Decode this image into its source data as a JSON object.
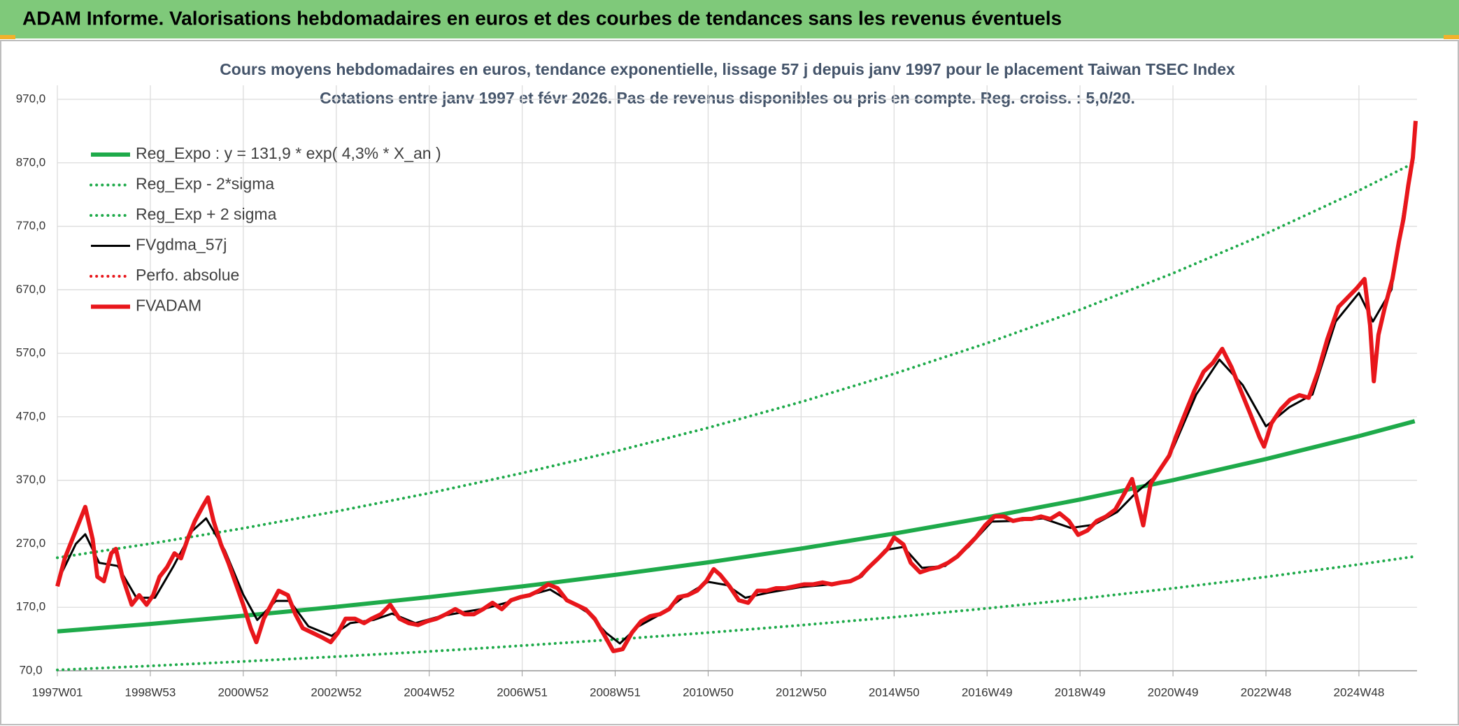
{
  "chart_data": {
    "type": "line",
    "title": "ADAM Informe. Valorisations hebdomadaires en euros et des courbes de tendances sans les revenus éventuels",
    "subtitle": "Cours moyens hebdomadaires en euros, tendance exponentielle, lissage 57 j depuis janv 1997 pour le placement Taiwan TSEC Index",
    "subtitle2": "Cotations entre janv 1997 et févr 2026. Pas de revenus disponibles ou pris en compte. Reg. croiss. : 5,0/20.",
    "xlim": [
      1997,
      2026.25
    ],
    "ylim": [
      70,
      970
    ],
    "grid": true,
    "legend": "upper-left",
    "xticks": [
      {
        "value": 1997,
        "label": "1997W01"
      },
      {
        "value": 1999,
        "label": "1998W53"
      },
      {
        "value": 2001,
        "label": "2000W52"
      },
      {
        "value": 2003,
        "label": "2002W52"
      },
      {
        "value": 2005,
        "label": "2004W52"
      },
      {
        "value": 2007,
        "label": "2006W51"
      },
      {
        "value": 2009,
        "label": "2008W51"
      },
      {
        "value": 2011,
        "label": "2010W50"
      },
      {
        "value": 2013,
        "label": "2012W50"
      },
      {
        "value": 2015,
        "label": "2014W50"
      },
      {
        "value": 2017,
        "label": "2016W49"
      },
      {
        "value": 2019,
        "label": "2018W49"
      },
      {
        "value": 2021,
        "label": "2020W49"
      },
      {
        "value": 2023,
        "label": "2022W48"
      },
      {
        "value": 2025,
        "label": "2024W48"
      }
    ],
    "yticks": [
      {
        "value": 70,
        "label": "70,0"
      },
      {
        "value": 170,
        "label": "170,0"
      },
      {
        "value": 270,
        "label": "270,0"
      },
      {
        "value": 370,
        "label": "370,0"
      },
      {
        "value": 470,
        "label": "470,0"
      },
      {
        "value": 570,
        "label": "570,0"
      },
      {
        "value": 670,
        "label": "670,0"
      },
      {
        "value": 770,
        "label": "770,0"
      },
      {
        "value": 870,
        "label": "870,0"
      },
      {
        "value": 970,
        "label": "970,0"
      }
    ],
    "series": [
      {
        "name": "Reg_Expo : y = 131,9 * exp( 4,3% *  X_an )",
        "color": "#1eaa4a",
        "style": "thick",
        "x": [
          1997,
          1999,
          2001,
          2003,
          2005,
          2007,
          2009,
          2011,
          2013,
          2015,
          2017,
          2019,
          2021,
          2023,
          2025,
          2026.2
        ],
        "values": [
          131.9,
          143.7,
          156.6,
          170.7,
          186.0,
          202.8,
          221.0,
          240.8,
          262.4,
          286.0,
          311.7,
          339.7,
          370.2,
          403.4,
          439.6,
          463.0
        ]
      },
      {
        "name": "Reg_Exp - 2*sigma",
        "color": "#1eaa4a",
        "style": "dotted",
        "x": [
          1997,
          1999,
          2001,
          2003,
          2005,
          2007,
          2009,
          2011,
          2013,
          2015,
          2017,
          2019,
          2021,
          2023,
          2025,
          2026.2
        ],
        "values": [
          71.2,
          77.6,
          84.6,
          92.2,
          100.4,
          109.5,
          119.3,
          130.0,
          141.7,
          154.4,
          168.3,
          183.4,
          199.9,
          217.8,
          237.4,
          250.0
        ]
      },
      {
        "name": "Reg_Exp + 2 sigma",
        "color": "#1eaa4a",
        "style": "dotted",
        "x": [
          1997,
          1999,
          2001,
          2003,
          2005,
          2007,
          2009,
          2011,
          2013,
          2015,
          2017,
          2019,
          2021,
          2023,
          2025,
          2026.2
        ],
        "values": [
          248.0,
          270.2,
          294.4,
          320.9,
          349.7,
          381.3,
          415.5,
          452.7,
          493.3,
          537.7,
          586.0,
          638.6,
          696.0,
          758.4,
          826.4,
          870.4
        ]
      },
      {
        "name": "FVgdma_57j",
        "color": "#000000",
        "style": "solid",
        "x": [
          1997,
          1997.4,
          1997.6,
          1997.9,
          1998.3,
          1998.7,
          1999.1,
          1999.5,
          1999.9,
          2000.2,
          2000.6,
          2001,
          2001.3,
          2001.7,
          2002,
          2002.4,
          2002.9,
          2003.3,
          2003.8,
          2004.2,
          2004.7,
          2005.2,
          2005.7,
          2006.2,
          2006.7,
          2007.2,
          2007.6,
          2008,
          2008.4,
          2008.8,
          2009.1,
          2009.5,
          2010,
          2010.5,
          2011,
          2011.4,
          2011.8,
          2012.3,
          2013,
          2013.8,
          2014.3,
          2014.8,
          2015.2,
          2015.6,
          2016.1,
          2016.6,
          2017.1,
          2017.6,
          2018.2,
          2018.8,
          2019.3,
          2019.8,
          2020.2,
          2020.6,
          2021,
          2021.5,
          2022,
          2022.5,
          2023,
          2023.5,
          2024,
          2024.5,
          2025,
          2025.3,
          2025.7,
          2026.1
        ],
        "values": [
          210,
          270,
          285,
          240,
          235,
          185,
          185,
          235,
          290,
          310,
          260,
          190,
          150,
          180,
          180,
          140,
          125,
          145,
          150,
          160,
          145,
          155,
          162,
          168,
          178,
          190,
          198,
          180,
          162,
          130,
          113,
          140,
          160,
          188,
          210,
          205,
          185,
          193,
          202,
          207,
          218,
          260,
          265,
          232,
          235,
          265,
          305,
          306,
          310,
          295,
          300,
          320,
          350,
          375,
          420,
          505,
          560,
          520,
          455,
          485,
          505,
          620,
          665,
          620,
          670,
          860
        ]
      },
      {
        "name": "Perfo. absolue",
        "color": "#e8161b",
        "style": "dotted",
        "x": [],
        "values": []
      },
      {
        "name": "FVADAM",
        "color": "#e8161b",
        "style": "thick",
        "x": [
          1997.0,
          1997.16,
          1997.36,
          1997.6,
          1997.76,
          1997.86,
          1998.0,
          1998.16,
          1998.26,
          1998.4,
          1998.6,
          1998.76,
          1998.92,
          1999.06,
          1999.2,
          1999.36,
          1999.52,
          1999.66,
          1999.8,
          1999.96,
          2000.12,
          2000.24,
          2000.36,
          2000.52,
          2000.68,
          2000.86,
          2001.0,
          2001.16,
          2001.28,
          2001.44,
          2001.6,
          2001.76,
          2001.96,
          2002.12,
          2002.28,
          2002.48,
          2002.68,
          2002.88,
          2003.04,
          2003.2,
          2003.4,
          2003.6,
          2003.76,
          2003.96,
          2004.16,
          2004.36,
          2004.56,
          2004.76,
          2004.96,
          2005.16,
          2005.36,
          2005.56,
          2005.76,
          2005.96,
          2006.16,
          2006.36,
          2006.56,
          2006.76,
          2006.96,
          2007.16,
          2007.36,
          2007.56,
          2007.76,
          2007.96,
          2008.16,
          2008.36,
          2008.56,
          2008.76,
          2008.96,
          2009.16,
          2009.36,
          2009.56,
          2009.76,
          2009.96,
          2010.16,
          2010.36,
          2010.56,
          2010.76,
          2010.96,
          2011.12,
          2011.26,
          2011.46,
          2011.66,
          2011.86,
          2012.06,
          2012.26,
          2012.46,
          2012.66,
          2012.86,
          2013.06,
          2013.26,
          2013.46,
          2013.66,
          2013.86,
          2014.06,
          2014.26,
          2014.46,
          2014.66,
          2014.86,
          2015.0,
          2015.2,
          2015.36,
          2015.56,
          2015.76,
          2015.96,
          2016.16,
          2016.36,
          2016.56,
          2016.76,
          2016.96,
          2017.16,
          2017.36,
          2017.56,
          2017.76,
          2017.96,
          2018.16,
          2018.36,
          2018.56,
          2018.76,
          2018.96,
          2019.16,
          2019.36,
          2019.56,
          2019.76,
          2019.96,
          2020.12,
          2020.24,
          2020.36,
          2020.52,
          2020.72,
          2020.92,
          2021.06,
          2021.26,
          2021.46,
          2021.66,
          2021.86,
          2022.06,
          2022.26,
          2022.46,
          2022.66,
          2022.86,
          2022.96,
          2023.12,
          2023.32,
          2023.52,
          2023.72,
          2023.92,
          2024.12,
          2024.32,
          2024.56,
          2024.76,
          2024.96,
          2025.12,
          2025.24,
          2025.32,
          2025.42,
          2025.56,
          2025.72,
          2025.86,
          2025.96,
          2026.06,
          2026.16,
          2026.22
        ],
        "values": [
          203,
          247,
          284,
          328,
          277,
          218,
          211,
          255,
          262,
          218,
          174,
          189,
          174,
          189,
          218,
          233,
          255,
          247,
          277,
          306,
          328,
          343,
          306,
          269,
          240,
          203,
          174,
          137,
          115,
          152,
          174,
          196,
          189,
          159,
          137,
          130,
          123,
          115,
          130,
          152,
          152,
          145,
          152,
          159,
          174,
          152,
          145,
          142,
          148,
          152,
          159,
          167,
          159,
          159,
          167,
          177,
          167,
          181,
          186,
          189,
          196,
          206,
          200,
          181,
          174,
          167,
          152,
          127,
          101,
          104,
          130,
          148,
          156,
          159,
          167,
          186,
          189,
          196,
          211,
          230,
          221,
          203,
          181,
          177,
          196,
          196,
          200,
          200,
          203,
          206,
          206,
          209,
          206,
          209,
          211,
          218,
          233,
          247,
          262,
          280,
          269,
          240,
          225,
          230,
          233,
          240,
          250,
          265,
          280,
          299,
          313,
          313,
          306,
          309,
          309,
          313,
          309,
          318,
          306,
          284,
          291,
          306,
          313,
          324,
          350,
          372,
          335,
          299,
          365,
          387,
          409,
          438,
          475,
          511,
          541,
          555,
          577,
          548,
          511,
          475,
          438,
          423,
          460,
          482,
          497,
          504,
          500,
          541,
          592,
          643,
          658,
          673,
          687,
          614,
          526,
          599,
          643,
          687,
          746,
          782,
          834,
          878,
          936
        ]
      }
    ]
  }
}
